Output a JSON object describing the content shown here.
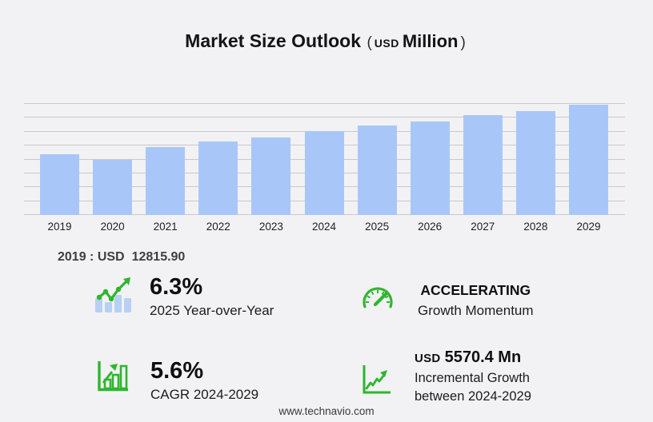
{
  "title": {
    "main": "Market Size Outlook",
    "open_paren": "(",
    "currency": "USD",
    "unit": "Million",
    "close_paren": ")"
  },
  "chart_data": {
    "type": "bar",
    "title": "Market Size Outlook (USD Million)",
    "unit": "USD Million",
    "categories": [
      "2019",
      "2020",
      "2021",
      "2022",
      "2023",
      "2024",
      "2025",
      "2026",
      "2027",
      "2028",
      "2029"
    ],
    "values": [
      12815.9,
      11640,
      14400,
      15560,
      16350,
      17791,
      18911.8,
      19760,
      21050,
      21950,
      23361.4
    ],
    "xlabel": "",
    "ylabel": "",
    "ylim": [
      0,
      23500
    ],
    "grid": true,
    "legend": false
  },
  "base_year": {
    "label": "2019 : USD",
    "value": "12815.90"
  },
  "stats": [
    {
      "icon": "yoy-growth-icon",
      "value": "6.3%",
      "label": "2025 Year-over-Year"
    },
    {
      "icon": "speedometer-icon",
      "value": "ACCELERATING",
      "label": "Growth Momentum"
    },
    {
      "icon": "bar-chart-growth-icon",
      "value": "5.6%",
      "label": "CAGR 2024-2029"
    },
    {
      "icon": "line-chart-growth-icon",
      "value_prefix": "USD",
      "value": "5570.4 Mn",
      "label": "Incremental Growth",
      "label2": "between 2024-2029"
    }
  ],
  "footer": {
    "website": "www.technavio.com"
  },
  "colors": {
    "background": "#f2f2f4",
    "bar": "#a8c7f8",
    "icon_bar": "#b7d0f3",
    "grid": "#c9c9cd",
    "green": "#2eb62e",
    "title_text": "#141414",
    "muted_text": "#3f3f3f"
  }
}
